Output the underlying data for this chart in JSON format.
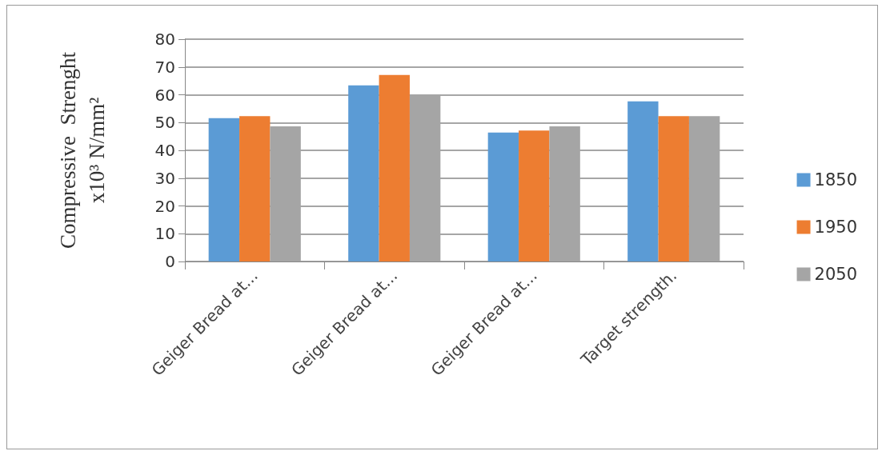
{
  "chart_data": {
    "type": "bar",
    "ylabel": "Compressive  Strenght\nx10³ N/mm²",
    "categories": [
      "Geiger Bread at...",
      "Geiger Bread at...",
      "Geiger Bread at...",
      "Target strength."
    ],
    "series": [
      {
        "name": "1850",
        "color": "#5b9bd5",
        "values": [
          51.6,
          63.4,
          46.4,
          57.6
        ]
      },
      {
        "name": "1950",
        "color": "#ed7d31",
        "values": [
          52.3,
          67.1,
          47.1,
          52.3
        ]
      },
      {
        "name": "2050",
        "color": "#a5a5a5",
        "values": [
          48.6,
          60.1,
          48.6,
          52.3
        ]
      }
    ],
    "ylim": [
      0,
      80
    ],
    "yticks": [
      0,
      10,
      20,
      30,
      40,
      50,
      60,
      70,
      80
    ],
    "grid": "y",
    "legend": "right"
  }
}
